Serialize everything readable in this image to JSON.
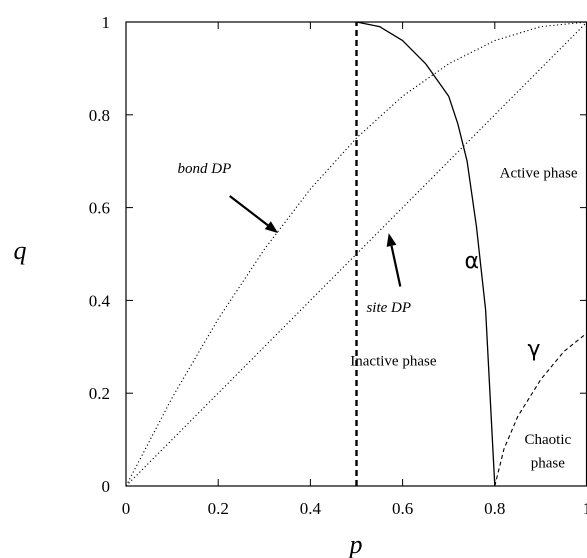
{
  "chart_data": {
    "type": "line",
    "xlabel": "p",
    "ylabel": "q",
    "xlim": [
      0,
      1
    ],
    "ylim": [
      0,
      1
    ],
    "x_ticks": [
      "0",
      "0.2",
      "0.4",
      "0.6",
      "0.8",
      "1"
    ],
    "y_ticks": [
      "0",
      "0.2",
      "0.4",
      "0.6",
      "0.8",
      "1"
    ],
    "grid": false,
    "series": [
      {
        "name": "",
        "style": "dotted",
        "color": "#000000",
        "x": [
          0,
          0.1,
          0.2,
          0.3,
          0.4,
          0.5,
          0.6,
          0.7,
          0.8,
          0.9,
          1.0
        ],
        "y": [
          0,
          0.19,
          0.36,
          0.51,
          0.64,
          0.75,
          0.84,
          0.91,
          0.96,
          0.99,
          1.0
        ]
      },
      {
        "name": "",
        "style": "dotted",
        "color": "#000000",
        "x": [
          0,
          1
        ],
        "y": [
          0,
          1
        ]
      },
      {
        "name": "",
        "style": "solid",
        "color": "#000000",
        "x": [
          0.5,
          0.55,
          0.6,
          0.65,
          0.7,
          0.72,
          0.74,
          0.76,
          0.78,
          0.8
        ],
        "y": [
          1.0,
          0.99,
          0.96,
          0.91,
          0.84,
          0.78,
          0.7,
          0.56,
          0.38,
          0.0
        ]
      },
      {
        "name": "",
        "style": "dashed",
        "color": "#000000",
        "x": [
          0.8,
          0.82,
          0.85,
          0.9,
          0.95,
          1.0
        ],
        "y": [
          0.0,
          0.08,
          0.15,
          0.23,
          0.29,
          0.33
        ]
      },
      {
        "name": "",
        "style": "thick-dashed",
        "color": "#000000",
        "x": [
          0.5,
          0.5
        ],
        "y": [
          0,
          1
        ]
      }
    ],
    "annotations": [
      {
        "id": "bond",
        "text": "bond DP",
        "italic": true,
        "x": 0.17,
        "y": 0.675
      },
      {
        "id": "site",
        "text": "site DP",
        "italic": true,
        "x": 0.57,
        "y": 0.375
      },
      {
        "id": "active",
        "text": "Active phase",
        "x": 0.895,
        "y": 0.665
      },
      {
        "id": "inactive",
        "text": "Inactive phase",
        "x": 0.58,
        "y": 0.26
      },
      {
        "id": "alpha",
        "text": "α",
        "x": 0.75,
        "y": 0.47
      },
      {
        "id": "gamma",
        "text": "γ",
        "x": 0.885,
        "y": 0.28
      },
      {
        "id": "chaotic1",
        "text": "Chaotic",
        "x": 0.915,
        "y": 0.09
      },
      {
        "id": "chaotic2",
        "text": "phase",
        "x": 0.915,
        "y": 0.04
      }
    ],
    "arrows": [
      {
        "id": "bond-arrow",
        "from": [
          0.225,
          0.625
        ],
        "to": [
          0.33,
          0.545
        ]
      },
      {
        "id": "site-arrow",
        "from": [
          0.595,
          0.43
        ],
        "to": [
          0.57,
          0.545
        ]
      }
    ]
  }
}
